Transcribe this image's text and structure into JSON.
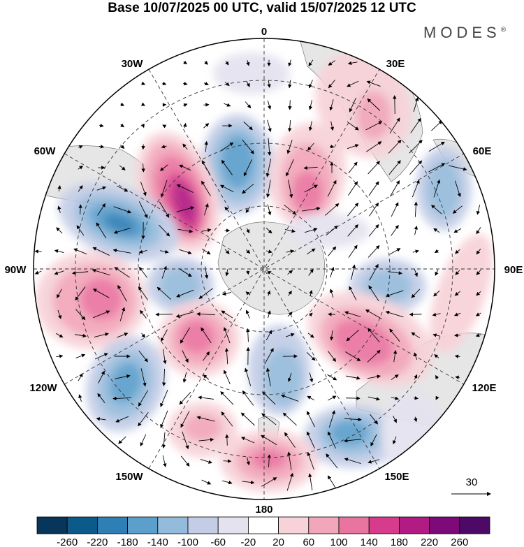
{
  "title": "Base 10/07/2025 00 UTC, valid 15/07/2025 12 UTC",
  "brand": "MODES",
  "brand_mark": "®",
  "map": {
    "projection": "south polar stereographic",
    "longitude_labels": [
      "0",
      "30E",
      "60E",
      "90E",
      "120E",
      "150E",
      "180",
      "150W",
      "120W",
      "90W",
      "60W",
      "30W"
    ],
    "reference_vector": "30",
    "colors": {
      "land": "#e6e6e6",
      "grid": "#333333"
    }
  },
  "colorbar": {
    "ticks": [
      "-260",
      "-220",
      "-180",
      "-140",
      "-100",
      "-60",
      "-20",
      "20",
      "60",
      "100",
      "140",
      "180",
      "220",
      "260"
    ],
    "colors": [
      "#08355a",
      "#0b5a8a",
      "#2d7fb5",
      "#5b9fcc",
      "#95bbdc",
      "#c3cde6",
      "#e4e2ef",
      "#ffffff",
      "#f7d2d8",
      "#f2a6b9",
      "#ea74a0",
      "#d93b8c",
      "#b21a84",
      "#7d0a78",
      "#4c0a66"
    ]
  }
}
